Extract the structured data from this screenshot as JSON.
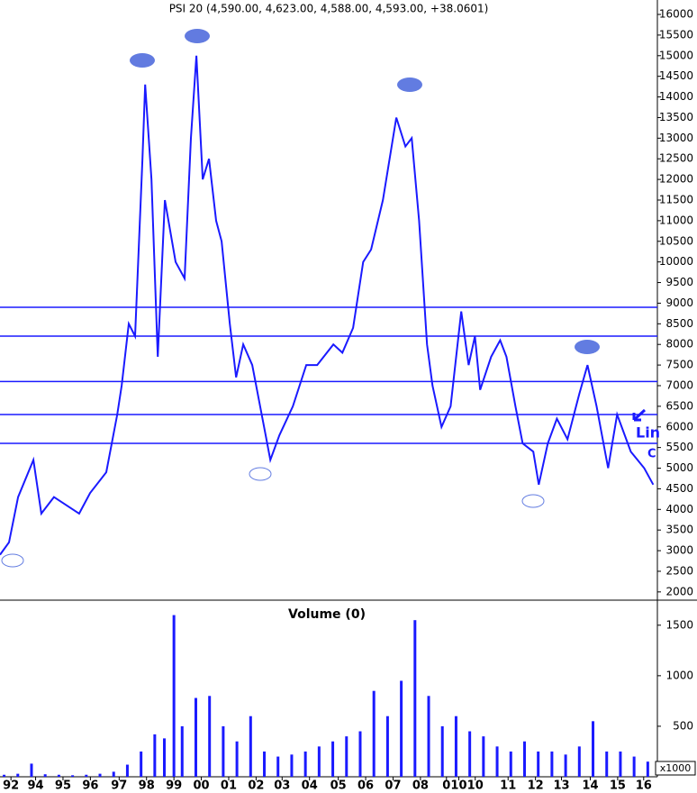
{
  "chart_data": [
    {
      "type": "line",
      "title": "PSI 20 (4,590.00, 4,623.00, 4,588.00, 4,593.00, +38.0601)",
      "color": "#1a1aff",
      "x": [
        1992.6,
        1992.93,
        1993.26,
        1993.82,
        1994.11,
        1994.57,
        1995.49,
        1995.89,
        1996.48,
        1996.88,
        1997.04,
        1997.3,
        1997.53,
        1997.8,
        1997.9,
        1998.13,
        1998.36,
        1998.62,
        1999.01,
        1999.34,
        1999.57,
        1999.77,
        2000.0,
        2000.23,
        2000.49,
        2000.69,
        2000.99,
        2001.22,
        2001.48,
        2001.81,
        2002.3,
        2002.47,
        2002.8,
        2003.29,
        2003.78,
        2004.18,
        2004.77,
        2005.1,
        2005.49,
        2005.86,
        2006.15,
        2006.58,
        2007.07,
        2007.4,
        2007.63,
        2007.9,
        2008.19,
        2008.39,
        2008.72,
        2009.05,
        2009.44,
        2009.71,
        2009.94,
        2010.13,
        2010.53,
        2010.86,
        2011.09,
        2011.42,
        2011.68,
        2012.07,
        2012.27,
        2012.6,
        2012.93,
        2013.32,
        2013.75,
        2014.05,
        2014.38,
        2014.8,
        2015.13,
        2015.63,
        2016.12,
        2016.45
      ],
      "values": [
        2900,
        3200,
        4300,
        5200,
        3900,
        4300,
        3900,
        4400,
        4900,
        6300,
        7000,
        8500,
        8200,
        12500,
        14300,
        12000,
        7700,
        11500,
        10000,
        9600,
        13000,
        15000,
        12000,
        12500,
        11000,
        10500,
        8500,
        7200,
        8000,
        7500,
        5800,
        5200,
        5800,
        6500,
        7500,
        7500,
        8000,
        7800,
        8400,
        10000,
        10300,
        11500,
        13500,
        12800,
        13000,
        11000,
        8000,
        7000,
        6000,
        6500,
        8800,
        7500,
        8200,
        6900,
        7700,
        8100,
        7700,
        6500,
        5600,
        5400,
        4600,
        5600,
        6200,
        5700,
        6800,
        7500,
        6500,
        5000,
        6300,
        5400,
        5000,
        4600
      ],
      "hlines": [
        8900,
        8200,
        7100,
        6300,
        5600
      ],
      "annotations": [
        "Lin",
        "C"
      ],
      "xlim": [
        1992.6,
        2016.6
      ],
      "ylim": [
        1800,
        16350
      ],
      "yticks": [
        2000,
        2500,
        3000,
        3500,
        4000,
        4500,
        5000,
        5500,
        6000,
        6500,
        7000,
        7500,
        8000,
        8500,
        9000,
        9500,
        10000,
        10500,
        11000,
        11500,
        12000,
        12500,
        13000,
        13500,
        14000,
        14500,
        15000,
        15500,
        16000
      ]
    },
    {
      "type": "bar",
      "title": "Volume (0)",
      "color": "#1a1aff",
      "unit_label": "x1000",
      "x": [
        1992.75,
        1993.25,
        1993.75,
        1994.25,
        1994.75,
        1995.25,
        1995.75,
        1996.25,
        1996.75,
        1997.25,
        1997.75,
        1998.25,
        1998.6,
        1998.95,
        1999.25,
        1999.75,
        2000.25,
        2000.75,
        2001.25,
        2001.75,
        2002.25,
        2002.75,
        2003.25,
        2003.75,
        2004.25,
        2004.75,
        2005.25,
        2005.75,
        2006.25,
        2006.75,
        2007.25,
        2007.75,
        2008.25,
        2008.75,
        2009.25,
        2009.75,
        2010.25,
        2010.75,
        2011.25,
        2011.75,
        2012.25,
        2012.75,
        2013.25,
        2013.75,
        2014.25,
        2014.75,
        2015.25,
        2015.75,
        2016.25
      ],
      "values": [
        20,
        30,
        130,
        25,
        20,
        15,
        20,
        30,
        50,
        120,
        250,
        420,
        380,
        1600,
        500,
        780,
        800,
        500,
        350,
        600,
        250,
        200,
        220,
        250,
        300,
        350,
        400,
        450,
        850,
        600,
        950,
        1550,
        800,
        500,
        600,
        450,
        400,
        300,
        250,
        350,
        250,
        250,
        220,
        300,
        550,
        250,
        250,
        200,
        150
      ],
      "xlim": [
        1992.6,
        2016.6
      ],
      "ylim": [
        0,
        1730
      ],
      "yticks": [
        500,
        1000,
        1500
      ],
      "xticks": [
        {
          "value": 1993.0,
          "label": "92"
        },
        {
          "value": 1993.9,
          "label": "94"
        },
        {
          "value": 1994.9,
          "label": "95"
        },
        {
          "value": 1995.9,
          "label": "96"
        },
        {
          "value": 1996.95,
          "label": "97"
        },
        {
          "value": 1997.95,
          "label": "98"
        },
        {
          "value": 1998.95,
          "label": "99"
        },
        {
          "value": 1999.95,
          "label": "00"
        },
        {
          "value": 2000.95,
          "label": "01"
        },
        {
          "value": 2001.95,
          "label": "02"
        },
        {
          "value": 2002.9,
          "label": "03"
        },
        {
          "value": 2003.9,
          "label": "04"
        },
        {
          "value": 2004.95,
          "label": "05"
        },
        {
          "value": 2005.95,
          "label": "06"
        },
        {
          "value": 2006.95,
          "label": "07"
        },
        {
          "value": 2007.95,
          "label": "08"
        },
        {
          "value": 2008.9,
          "label": "0"
        },
        {
          "value": 2009.35,
          "label": "10"
        },
        {
          "value": 2009.95,
          "label": "10"
        },
        {
          "value": 2011.15,
          "label": "11"
        },
        {
          "value": 2012.15,
          "label": "12"
        },
        {
          "value": 2013.1,
          "label": "13"
        },
        {
          "value": 2014.15,
          "label": "14"
        },
        {
          "value": 2015.15,
          "label": "15"
        },
        {
          "value": 2016.1,
          "label": "16"
        }
      ]
    }
  ]
}
